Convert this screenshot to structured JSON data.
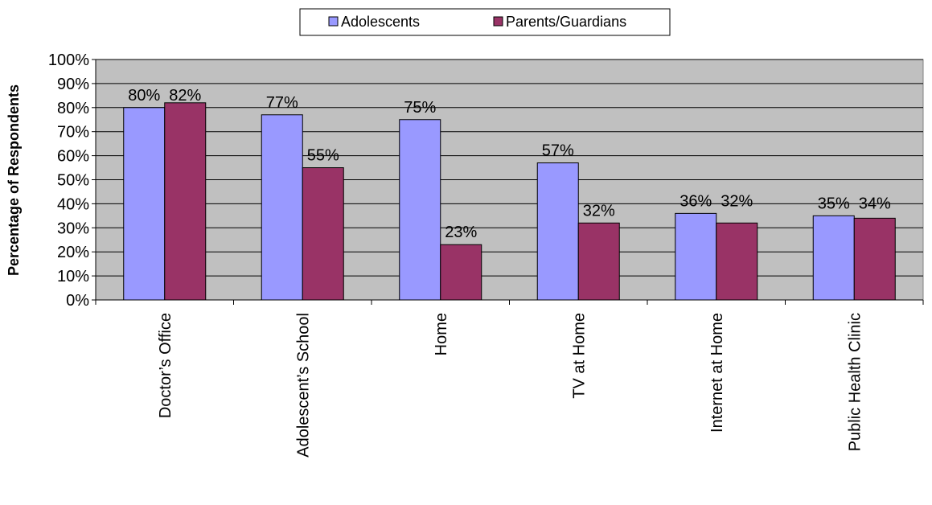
{
  "chart_data": {
    "type": "bar",
    "categories": [
      "Doctor’s Office",
      "Adolescent’s School",
      "Home",
      "TV at Home",
      "Internet at Home",
      "Public Health Clinic"
    ],
    "series": [
      {
        "name": "Adolescents",
        "values": [
          80,
          77,
          75,
          57,
          36,
          35
        ],
        "labels": [
          "80%",
          "77%",
          "75%",
          "57%",
          "36%",
          "35%"
        ],
        "color": "#9999ff"
      },
      {
        "name": "Parents/Guardians",
        "values": [
          82,
          55,
          23,
          32,
          32,
          34
        ],
        "labels": [
          "82%",
          "55%",
          "23%",
          "32%",
          "32%",
          "34%"
        ],
        "color": "#993366"
      }
    ],
    "title": "",
    "xlabel": "",
    "ylabel": "Percentage of Respondents",
    "ylim": [
      0,
      100
    ],
    "yticks": [
      "0%",
      "10%",
      "20%",
      "30%",
      "40%",
      "50%",
      "60%",
      "70%",
      "80%",
      "90%",
      "100%"
    ],
    "grid": true,
    "plot_background": "#c0c0c0",
    "legend_position": "top-center"
  }
}
